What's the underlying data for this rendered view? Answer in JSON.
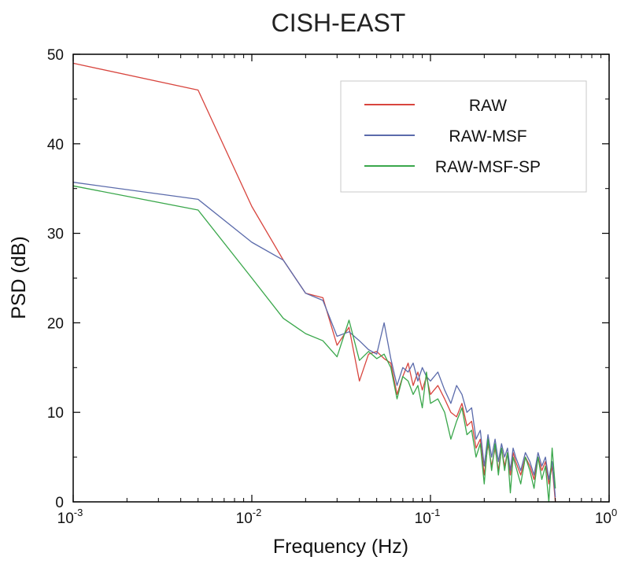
{
  "chart_data": {
    "type": "line",
    "title": "CISH-EAST",
    "xlabel": "Frequency (Hz)",
    "ylabel": "PSD (dB)",
    "xscale": "log",
    "xlim": [
      0.001,
      1
    ],
    "ylim": [
      0,
      50
    ],
    "grid": false,
    "legend_position": "top-right",
    "x_ticks": [
      {
        "base": "10",
        "exp": "-3"
      },
      {
        "base": "10",
        "exp": "-2"
      },
      {
        "base": "10",
        "exp": "-1"
      },
      {
        "base": "10",
        "exp": "0"
      }
    ],
    "y_ticks": [
      "0",
      "10",
      "20",
      "30",
      "40",
      "50"
    ],
    "series": [
      {
        "name": "RAW",
        "color": "#d8453e",
        "x": [
          0.001,
          0.005,
          0.01,
          0.015,
          0.02,
          0.025,
          0.03,
          0.035,
          0.04,
          0.045,
          0.05,
          0.055,
          0.06,
          0.065,
          0.07,
          0.075,
          0.08,
          0.085,
          0.09,
          0.095,
          0.1,
          0.11,
          0.12,
          0.13,
          0.14,
          0.15,
          0.16,
          0.17,
          0.18,
          0.19,
          0.2,
          0.21,
          0.22,
          0.23,
          0.24,
          0.25,
          0.26,
          0.27,
          0.28,
          0.29,
          0.3,
          0.32,
          0.34,
          0.36,
          0.38,
          0.4,
          0.42,
          0.44,
          0.46,
          0.48,
          0.5
        ],
        "y": [
          49,
          46,
          33,
          27,
          23.3,
          22.8,
          17.5,
          19.5,
          13.5,
          16.5,
          16.8,
          16,
          15.5,
          12,
          14,
          15.5,
          13,
          14.5,
          12.5,
          14,
          12,
          13,
          11.5,
          10,
          9.5,
          11,
          8.5,
          9,
          6,
          7,
          3,
          6.5,
          4,
          6,
          3.5,
          6,
          4,
          5.5,
          3,
          5.5,
          4.5,
          3,
          5,
          4,
          2.5,
          5,
          3.5,
          4.5,
          2,
          4,
          0
        ]
      },
      {
        "name": "RAW-MSF",
        "color": "#5b6bab",
        "x": [
          0.001,
          0.005,
          0.01,
          0.015,
          0.02,
          0.025,
          0.03,
          0.035,
          0.04,
          0.045,
          0.05,
          0.055,
          0.06,
          0.065,
          0.07,
          0.075,
          0.08,
          0.085,
          0.09,
          0.095,
          0.1,
          0.11,
          0.12,
          0.13,
          0.14,
          0.15,
          0.16,
          0.17,
          0.18,
          0.19,
          0.2,
          0.21,
          0.22,
          0.23,
          0.24,
          0.25,
          0.26,
          0.27,
          0.28,
          0.29,
          0.3,
          0.32,
          0.34,
          0.36,
          0.38,
          0.4,
          0.42,
          0.44,
          0.46,
          0.48,
          0.5
        ],
        "y": [
          35.7,
          33.8,
          29,
          27,
          23.3,
          22.5,
          18.5,
          19,
          18,
          17,
          16.5,
          20,
          16,
          13,
          15,
          14.5,
          15.5,
          13.5,
          15,
          14,
          13.5,
          14.5,
          12.5,
          11,
          13,
          12,
          10,
          10.5,
          7,
          8,
          4,
          7.5,
          5,
          7,
          4.5,
          6.5,
          5,
          6,
          3.5,
          6,
          5,
          3.5,
          5.5,
          4.5,
          3,
          5.5,
          4,
          5,
          2.5,
          4.5,
          0.5
        ]
      },
      {
        "name": "RAW-MSF-SP",
        "color": "#3aa74b",
        "x": [
          0.001,
          0.005,
          0.01,
          0.015,
          0.02,
          0.025,
          0.03,
          0.035,
          0.04,
          0.045,
          0.05,
          0.055,
          0.06,
          0.065,
          0.07,
          0.075,
          0.08,
          0.085,
          0.09,
          0.095,
          0.1,
          0.11,
          0.12,
          0.13,
          0.14,
          0.15,
          0.16,
          0.17,
          0.18,
          0.19,
          0.2,
          0.21,
          0.22,
          0.23,
          0.24,
          0.25,
          0.26,
          0.27,
          0.28,
          0.29,
          0.3,
          0.32,
          0.34,
          0.36,
          0.38,
          0.4,
          0.42,
          0.44,
          0.46,
          0.48,
          0.5
        ],
        "y": [
          35.3,
          32.6,
          25,
          20.5,
          18.8,
          18,
          16.2,
          20.3,
          15.8,
          16.8,
          16,
          16.5,
          15,
          11.5,
          14,
          13.5,
          12,
          13,
          10.5,
          14.5,
          11,
          11.5,
          10,
          7,
          9,
          10.5,
          7.5,
          8,
          5,
          6.5,
          2,
          7,
          3.5,
          6.5,
          3,
          6,
          3.5,
          5.5,
          1,
          5,
          4,
          2,
          5,
          3.5,
          1.5,
          5,
          2.5,
          4,
          0,
          6,
          1.5
        ]
      }
    ]
  }
}
